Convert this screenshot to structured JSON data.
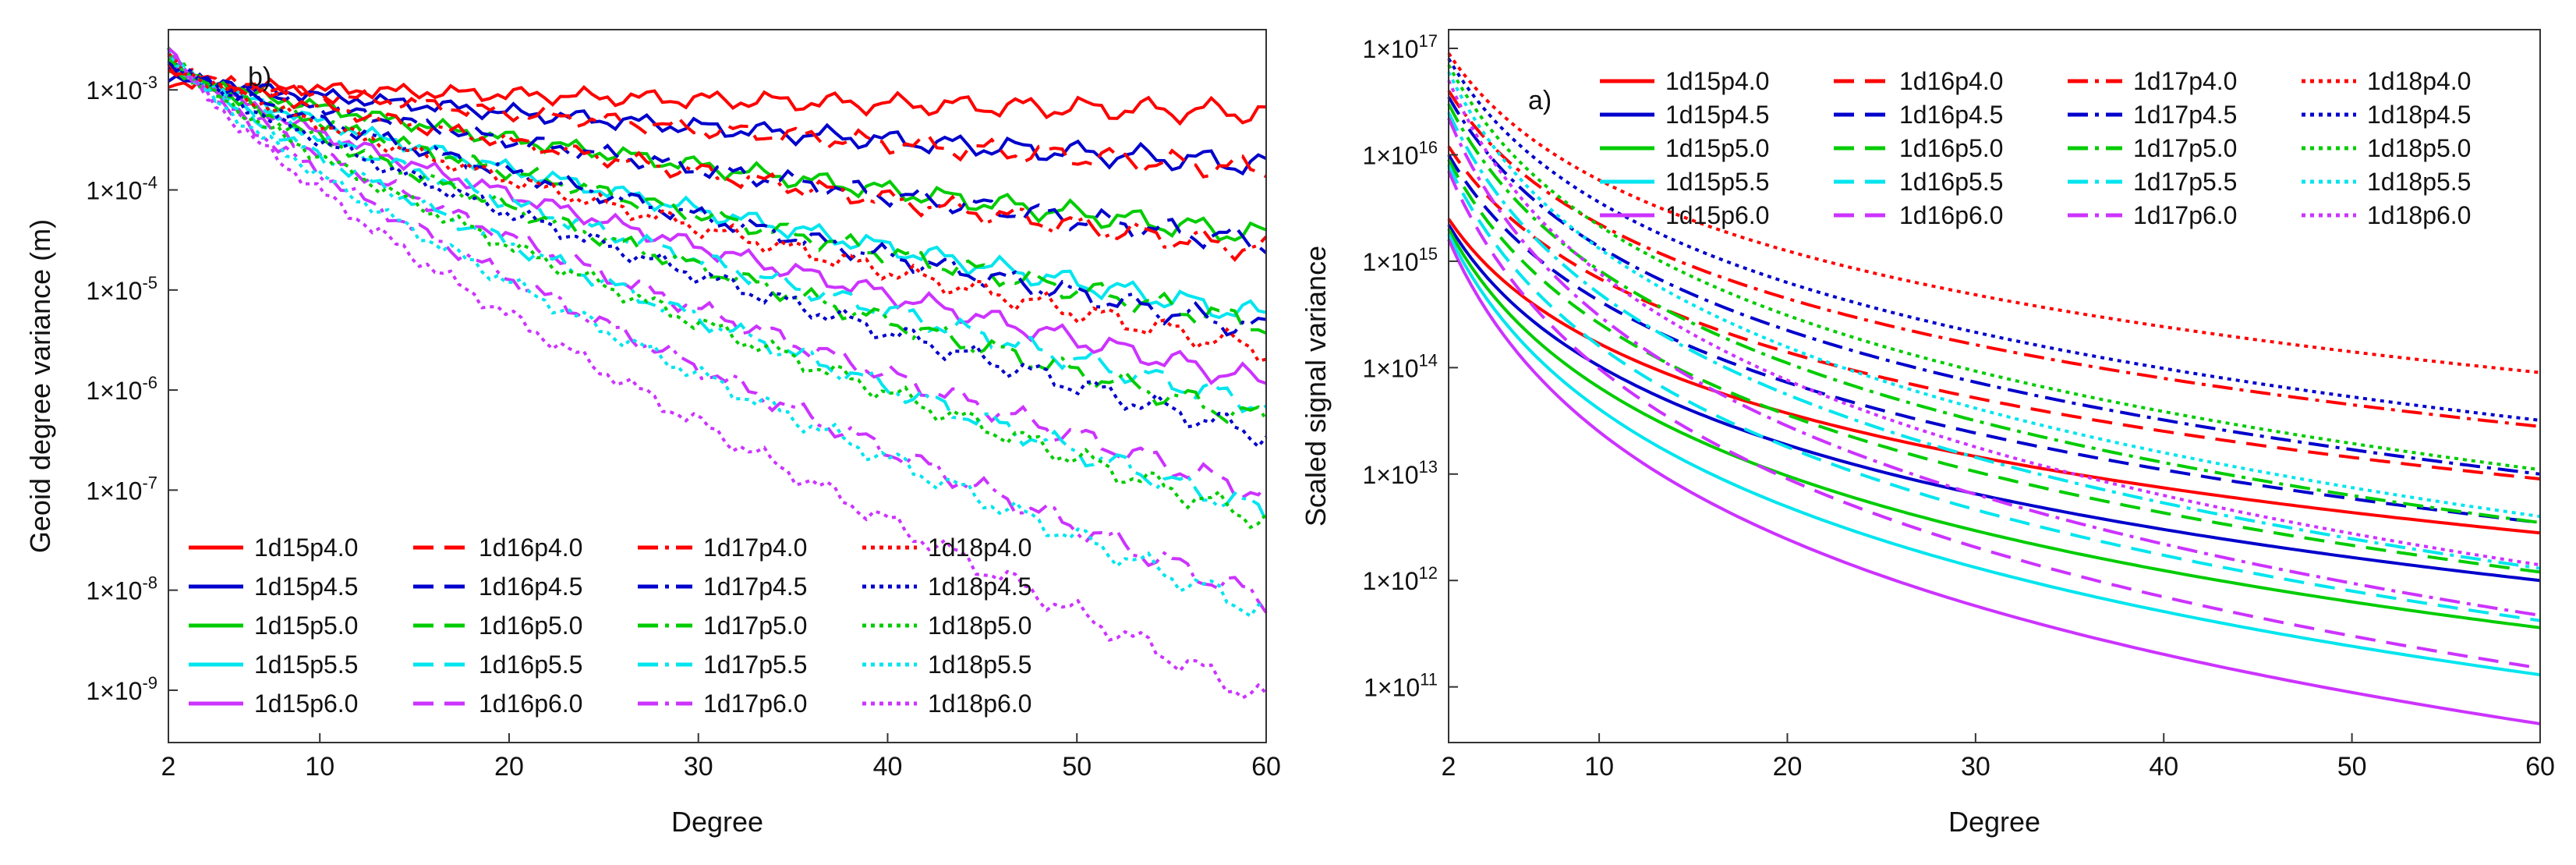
{
  "chart_data": [
    {
      "panel_label": "b)",
      "type": "line",
      "title": "",
      "xlabel": "Degree",
      "ylabel": "Geoid degree variance (m)",
      "xlim": [
        2,
        60
      ],
      "ylim": [
        3e-10,
        0.004
      ],
      "yscale": "log",
      "x_ticks": [
        2,
        10,
        20,
        30,
        40,
        50,
        60
      ],
      "y_ticks": [
        {
          "value": 0.001,
          "mantissa": "1×10",
          "exp": "-3"
        },
        {
          "value": 0.0001,
          "mantissa": "1×10",
          "exp": "-4"
        },
        {
          "value": 1e-05,
          "mantissa": "1×10",
          "exp": "-5"
        },
        {
          "value": 1e-06,
          "mantissa": "1×10",
          "exp": "-6"
        },
        {
          "value": 1e-07,
          "mantissa": "1×10",
          "exp": "-7"
        },
        {
          "value": 1e-08,
          "mantissa": "1×10",
          "exp": "-8"
        },
        {
          "value": 1e-09,
          "mantissa": "1×10",
          "exp": "-9"
        }
      ],
      "legend_location": "lower-left",
      "series": [
        {
          "name": "1d15p4.0",
          "color": "#ff0000",
          "style": "solid",
          "start": 0.0012,
          "end": 0.0006
        },
        {
          "name": "1d15p4.5",
          "color": "#0000cc",
          "style": "solid",
          "start": 0.0014,
          "end": 0.00018
        },
        {
          "name": "1d15p5.0",
          "color": "#00cc00",
          "style": "solid",
          "start": 0.0016,
          "end": 3.5e-05
        },
        {
          "name": "1d15p5.5",
          "color": "#00e5ee",
          "style": "solid",
          "start": 0.0018,
          "end": 5.5e-06
        },
        {
          "name": "1d15p6.0",
          "color": "#cc33ff",
          "style": "solid",
          "start": 0.002,
          "end": 1.2e-06
        },
        {
          "name": "1d16p4.0",
          "color": "#ff0000",
          "style": "dash",
          "start": 0.0015,
          "end": 0.00016
        },
        {
          "name": "1d16p4.5",
          "color": "#0000cc",
          "style": "dash",
          "start": 0.0017,
          "end": 3e-05
        },
        {
          "name": "1d16p5.0",
          "color": "#00cc00",
          "style": "dash",
          "start": 0.0019,
          "end": 4.5e-06
        },
        {
          "name": "1d16p5.5",
          "color": "#00e5ee",
          "style": "dash",
          "start": 0.0021,
          "end": 7e-07
        },
        {
          "name": "1d16p6.0",
          "color": "#cc33ff",
          "style": "dash",
          "start": 0.0023,
          "end": 9e-08
        },
        {
          "name": "1d17p4.0",
          "color": "#ff0000",
          "style": "dashdot",
          "start": 0.0018,
          "end": 2.5e-05
        },
        {
          "name": "1d17p4.5",
          "color": "#0000cc",
          "style": "dashdot",
          "start": 0.002,
          "end": 4e-06
        },
        {
          "name": "1d17p5.0",
          "color": "#00cc00",
          "style": "dashdot",
          "start": 0.0022,
          "end": 5e-07
        },
        {
          "name": "1d17p5.5",
          "color": "#00e5ee",
          "style": "dashdot",
          "start": 0.0024,
          "end": 6e-08
        },
        {
          "name": "1d17p6.0",
          "color": "#cc33ff",
          "style": "dashdot",
          "start": 0.0026,
          "end": 8e-09
        },
        {
          "name": "1d18p4.0",
          "color": "#ff0000",
          "style": "dot",
          "start": 0.0021,
          "end": 2.5e-06
        },
        {
          "name": "1d18p4.5",
          "color": "#0000cc",
          "style": "dot",
          "start": 0.0023,
          "end": 3.5e-07
        },
        {
          "name": "1d18p5.0",
          "color": "#00cc00",
          "style": "dot",
          "start": 0.0025,
          "end": 5e-08
        },
        {
          "name": "1d18p5.5",
          "color": "#00e5ee",
          "style": "dot",
          "start": 0.0027,
          "end": 6e-09
        },
        {
          "name": "1d18p6.0",
          "color": "#cc33ff",
          "style": "dot",
          "start": 0.003,
          "end": 8e-10
        }
      ]
    },
    {
      "panel_label": "a)",
      "type": "line",
      "title": "",
      "xlabel": "Degree",
      "ylabel": "Scaled signal variance",
      "xlim": [
        2,
        60
      ],
      "ylim": [
        30000000000,
        150000000000000000
      ],
      "yscale": "log",
      "x_ticks": [
        2,
        10,
        20,
        30,
        40,
        50,
        60
      ],
      "y_ticks": [
        {
          "value": 100000000000000000,
          "mantissa": "1×10",
          "exp": "17"
        },
        {
          "value": 10000000000000000,
          "mantissa": "1×10",
          "exp": "16"
        },
        {
          "value": 1000000000000000,
          "mantissa": "1×10",
          "exp": "15"
        },
        {
          "value": 100000000000000,
          "mantissa": "1×10",
          "exp": "14"
        },
        {
          "value": 10000000000000,
          "mantissa": "1×10",
          "exp": "13"
        },
        {
          "value": 1000000000000,
          "mantissa": "1×10",
          "exp": "12"
        },
        {
          "value": 100000000000,
          "mantissa": "1×10",
          "exp": "11"
        }
      ],
      "legend_location": "top-right",
      "series": [
        {
          "name": "1d15p4.0",
          "color": "#ff0000",
          "style": "solid",
          "start": 2500000000000000,
          "end": 2800000000000
        },
        {
          "name": "1d15p4.5",
          "color": "#0000cc",
          "style": "solid",
          "start": 2200000000000000,
          "end": 1000000000000
        },
        {
          "name": "1d15p5.0",
          "color": "#00cc00",
          "style": "solid",
          "start": 2000000000000000,
          "end": 360000000000
        },
        {
          "name": "1d15p5.5",
          "color": "#00e5ee",
          "style": "solid",
          "start": 1800000000000000,
          "end": 130000000000
        },
        {
          "name": "1d15p6.0",
          "color": "#cc33ff",
          "style": "solid",
          "start": 1600000000000000,
          "end": 45000000000
        },
        {
          "name": "1d16p4.0",
          "color": "#ff0000",
          "style": "dash",
          "start": 12000000000000000,
          "end": 9000000000000
        },
        {
          "name": "1d16p4.5",
          "color": "#0000cc",
          "style": "dash",
          "start": 10000000000000000,
          "end": 3500000000000
        },
        {
          "name": "1d16p5.0",
          "color": "#00cc00",
          "style": "dash",
          "start": 9000000000000000,
          "end": 1200000000000
        },
        {
          "name": "1d16p5.5",
          "color": "#00e5ee",
          "style": "dash",
          "start": 8000000000000000,
          "end": 420000000000
        },
        {
          "name": "1d16p6.0",
          "color": "#cc33ff",
          "style": "dash",
          "start": 7000000000000000,
          "end": 150000000000
        },
        {
          "name": "1d17p4.0",
          "color": "#ff0000",
          "style": "dashdot",
          "start": 40000000000000000,
          "end": 28000000000000
        },
        {
          "name": "1d17p4.5",
          "color": "#0000cc",
          "style": "dashdot",
          "start": 35000000000000000,
          "end": 10000000000000
        },
        {
          "name": "1d17p5.0",
          "color": "#00cc00",
          "style": "dashdot",
          "start": 30000000000000000,
          "end": 3500000000000
        },
        {
          "name": "1d17p5.5",
          "color": "#00e5ee",
          "style": "dashdot",
          "start": 25000000000000000,
          "end": 1300000000000
        },
        {
          "name": "1d17p6.0",
          "color": "#cc33ff",
          "style": "dashdot",
          "start": 22000000000000000,
          "end": 470000000000
        },
        {
          "name": "1d18p4.0",
          "color": "#ff0000",
          "style": "dot",
          "start": 90000000000000000,
          "end": 90000000000000
        },
        {
          "name": "1d18p4.5",
          "color": "#0000cc",
          "style": "dot",
          "start": 80000000000000000,
          "end": 32000000000000
        },
        {
          "name": "1d18p5.0",
          "color": "#00cc00",
          "style": "dot",
          "start": 70000000000000000,
          "end": 11000000000000
        },
        {
          "name": "1d18p5.5",
          "color": "#00e5ee",
          "style": "dot",
          "start": 60000000000000000,
          "end": 4000000000000
        },
        {
          "name": "1d18p6.0",
          "color": "#cc33ff",
          "style": "dot",
          "start": 50000000000000000,
          "end": 1400000000000
        }
      ]
    }
  ]
}
